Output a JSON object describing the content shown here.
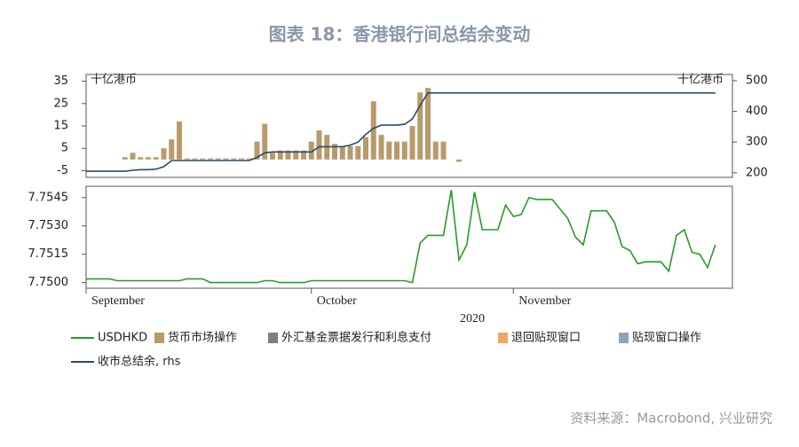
{
  "title": "图表 18：香港银行间总结余变动",
  "source": "资料来源：Macrobond, 兴业研究",
  "chart_data": [
    {
      "type": "bar",
      "y_label": "十亿港币",
      "y2_label": "十亿港币",
      "ylim": [
        -8,
        38
      ],
      "yticks": [
        -5,
        5,
        15,
        25,
        35
      ],
      "y2lim": [
        185,
        520
      ],
      "y2ticks": [
        200,
        300,
        400,
        500
      ],
      "series": [
        {
          "name": "货币市场操作",
          "type": "bar",
          "color": "#b99a6a",
          "values": [
            0,
            0,
            0,
            0,
            0,
            1,
            3,
            1,
            1,
            1,
            5,
            9,
            17,
            0.5,
            0.5,
            0.5,
            0.5,
            0.5,
            0.5,
            0.5,
            0.5,
            0.5,
            8,
            16,
            3,
            4,
            4,
            4,
            4,
            8,
            13,
            11,
            7,
            6,
            6,
            6,
            10,
            26,
            11,
            8,
            8,
            8,
            15,
            30,
            32,
            8,
            8,
            0,
            -1,
            0,
            0,
            0,
            0,
            0,
            0,
            0,
            0,
            0,
            0,
            0,
            0,
            0,
            0,
            0,
            0,
            0,
            0,
            0,
            0,
            0,
            0,
            0,
            0,
            0,
            0,
            0,
            0,
            0,
            0,
            0,
            0,
            0,
            0
          ]
        },
        {
          "name": "外汇基金票据发行和利息支付",
          "type": "bar",
          "color": "#7f7f7f"
        },
        {
          "name": "退回贴现窗口",
          "type": "bar",
          "color": "#f4a460"
        },
        {
          "name": "贴现窗口操作",
          "type": "bar",
          "color": "#8aa6bf"
        },
        {
          "name": "收市总结余, rhs",
          "type": "line",
          "axis": "y2",
          "color": "#2e4a6b",
          "values": [
            205,
            205,
            205,
            205,
            205,
            205,
            208,
            210,
            210,
            212,
            220,
            240,
            240,
            240,
            240,
            240,
            240,
            240,
            240,
            240,
            240,
            240,
            250,
            265,
            268,
            268,
            268,
            268,
            268,
            268,
            285,
            285,
            285,
            285,
            290,
            300,
            325,
            345,
            355,
            355,
            355,
            358,
            375,
            420,
            460,
            460,
            460,
            460,
            460,
            460,
            460,
            460,
            460,
            460,
            460,
            460,
            460,
            460,
            460,
            460,
            460,
            460,
            460,
            460,
            460,
            460,
            460,
            460,
            460,
            460,
            460,
            460,
            460,
            460,
            460,
            460,
            460,
            460,
            460,
            460,
            460,
            460
          ]
        }
      ]
    },
    {
      "type": "line",
      "categories": [
        "September",
        null,
        null,
        null,
        null,
        null,
        null,
        null,
        null,
        null,
        null,
        null,
        null,
        null,
        null,
        null,
        null,
        null,
        null,
        null,
        null,
        null,
        null,
        null,
        null,
        null,
        null,
        null,
        null,
        "October",
        null,
        null,
        null,
        null,
        null,
        null,
        null,
        null,
        null,
        null,
        null,
        null,
        null,
        null,
        null,
        null,
        null,
        null,
        null,
        null,
        null,
        null,
        null,
        null,
        null,
        "November",
        null,
        null,
        null,
        null,
        null,
        null,
        null,
        null,
        null,
        null,
        null,
        null,
        null,
        null,
        null,
        null,
        null,
        null,
        null,
        null,
        null,
        null,
        null,
        null,
        null,
        null
      ],
      "xlabel": "2020",
      "ylim": [
        7.7497,
        7.7551
      ],
      "yticks": [
        {
          "value": 7.75,
          "label": "7.7500"
        },
        7.7515,
        {
          "value": 7.753,
          "label": "7.7530"
        },
        7.7545
      ],
      "series": [
        {
          "name": "USDHKD",
          "type": "line",
          "color": "#2a9a2a",
          "values": [
            7.7502,
            7.7502,
            7.7502,
            7.7502,
            7.7501,
            7.7501,
            7.7501,
            7.7501,
            7.7501,
            7.7501,
            7.7501,
            7.7501,
            7.7501,
            7.7502,
            7.7502,
            7.7502,
            7.75,
            7.75,
            7.75,
            7.75,
            7.75,
            7.75,
            7.75,
            7.7501,
            7.7501,
            7.75,
            7.75,
            7.75,
            7.75,
            7.7501,
            7.7501,
            7.7501,
            7.7501,
            7.7501,
            7.7501,
            7.7501,
            7.7501,
            7.7501,
            7.7501,
            7.7501,
            7.7501,
            7.7501,
            7.75,
            7.7521,
            7.7525,
            7.7525,
            7.7525,
            7.7549,
            7.7512,
            7.752,
            7.7548,
            7.7528,
            7.7528,
            7.7528,
            7.7541,
            7.7535,
            7.7536,
            7.7545,
            7.7544,
            7.7544,
            7.7544,
            7.7539,
            7.7534,
            7.7524,
            7.752,
            7.7538,
            7.7538,
            7.7538,
            7.7532,
            7.7519,
            7.7517,
            7.751,
            7.7511,
            7.7511,
            7.7511,
            7.7506,
            7.7525,
            7.7528,
            7.7516,
            7.7515,
            7.7508,
            7.752
          ]
        }
      ]
    }
  ]
}
